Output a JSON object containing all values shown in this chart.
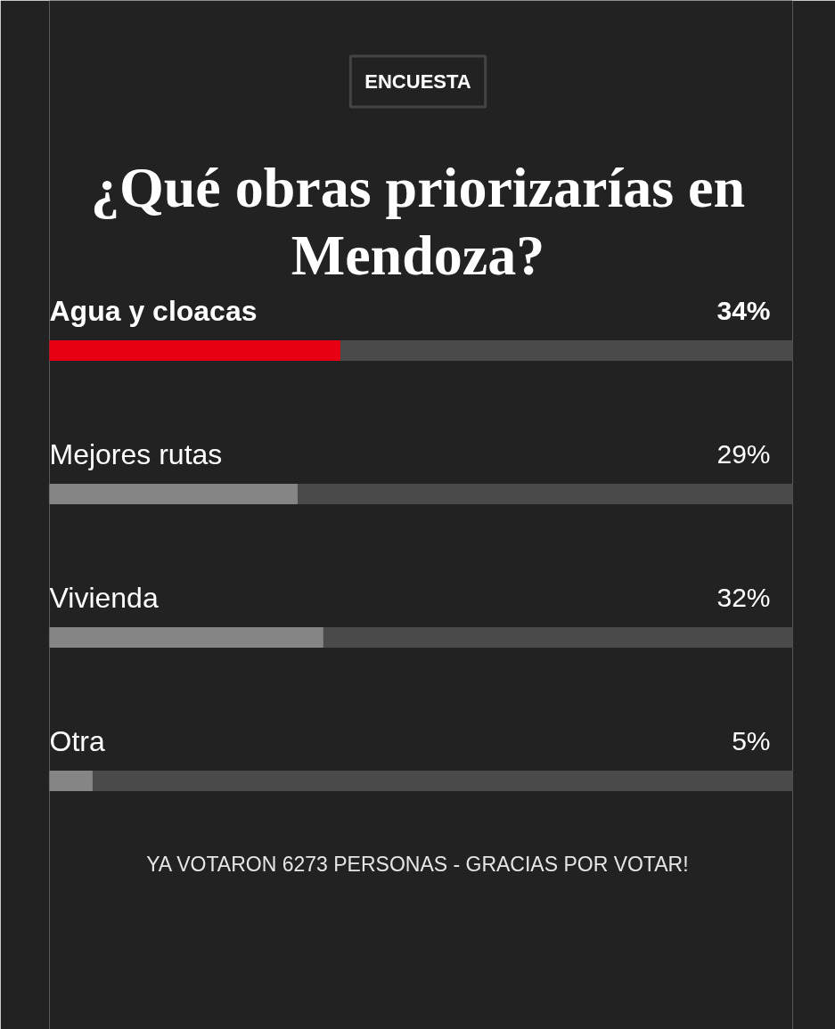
{
  "chart_data": {
    "type": "bar",
    "orientation": "horizontal",
    "title": "¿Qué obras priorizarías en Mendoza?",
    "annotations": [
      "ENCUESTA",
      "YA VOTARON 6273 PERSONAS - GRACIAS POR VOTAR!"
    ],
    "categories": [
      "Agua y cloacas",
      "Mejores rutas",
      "Vivienda",
      "Otra"
    ],
    "values": [
      34,
      29,
      32,
      5
    ],
    "colors": [
      "#e60012",
      "#858585",
      "#858585",
      "#858585"
    ],
    "value_labels": [
      "34%",
      "29%",
      "32%",
      "5%"
    ],
    "xlim": [
      0,
      87
    ],
    "tick_labels": false
  }
}
